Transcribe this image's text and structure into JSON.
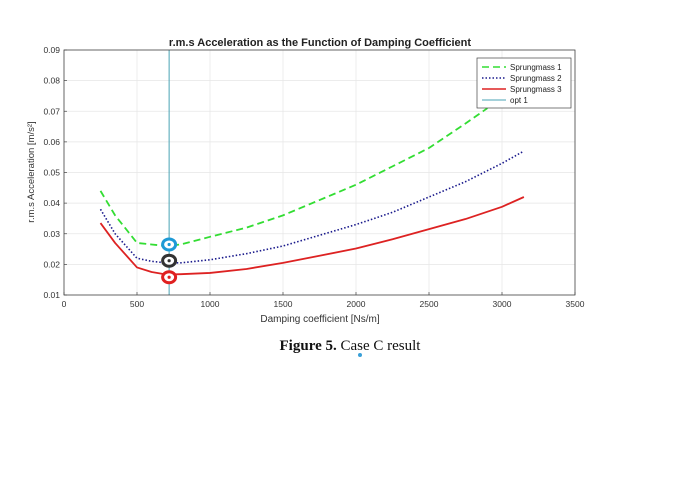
{
  "chart_data": {
    "type": "line",
    "title": "r.m.s Acceleration as the Function of Damping Coefficient",
    "xlabel": "Damping coefficient [Ns/m]",
    "ylabel": "r.m.s Acceleration [m/s²]",
    "xlim": [
      0,
      3500
    ],
    "ylim": [
      0.01,
      0.09
    ],
    "xticks": [
      "0",
      "500",
      "1000",
      "1500",
      "2000",
      "2500",
      "3000",
      "3500"
    ],
    "yticks": [
      "0.01",
      "0.02",
      "0.03",
      "0.04",
      "0.05",
      "0.06",
      "0.07",
      "0.08",
      "0.09"
    ],
    "grid": true,
    "legend_position": "top-right",
    "series": [
      {
        "name": "Sprungmass 1",
        "color": "#33dd33",
        "style": "dashed",
        "x": [
          250,
          350,
          500,
          600,
          700,
          800,
          1000,
          1250,
          1500,
          1750,
          2000,
          2250,
          2500,
          2750,
          2900
        ],
        "y": [
          0.044,
          0.036,
          0.027,
          0.0265,
          0.026,
          0.0265,
          0.029,
          0.032,
          0.036,
          0.041,
          0.046,
          0.052,
          0.058,
          0.066,
          0.071
        ]
      },
      {
        "name": "Sprungmass 2",
        "color": "#1a1a8c",
        "style": "dotted",
        "x": [
          250,
          350,
          500,
          600,
          700,
          800,
          1000,
          1250,
          1500,
          1750,
          2000,
          2250,
          2500,
          2750,
          3000,
          3150
        ],
        "y": [
          0.038,
          0.03,
          0.022,
          0.021,
          0.0205,
          0.0205,
          0.0215,
          0.0235,
          0.026,
          0.0295,
          0.033,
          0.037,
          0.042,
          0.047,
          0.053,
          0.057
        ]
      },
      {
        "name": "Sprungmass 3",
        "color": "#dd2222",
        "style": "solid",
        "x": [
          250,
          350,
          500,
          600,
          700,
          800,
          1000,
          1250,
          1500,
          1750,
          2000,
          2250,
          2500,
          2750,
          3000,
          3150
        ],
        "y": [
          0.0335,
          0.027,
          0.019,
          0.0175,
          0.0167,
          0.0168,
          0.0172,
          0.0185,
          0.0205,
          0.0228,
          0.0252,
          0.0282,
          0.0315,
          0.0348,
          0.0388,
          0.042
        ]
      },
      {
        "name": "opt 1",
        "color": "#4aa3b5",
        "style": "solid",
        "x": [
          720,
          720
        ],
        "y": [
          0.01,
          0.09
        ]
      }
    ],
    "markers": [
      {
        "x": 720,
        "y": 0.0265,
        "color": "#1e9ad6"
      },
      {
        "x": 720,
        "y": 0.0212,
        "color": "#333333"
      },
      {
        "x": 720,
        "y": 0.0158,
        "color": "#e02020"
      }
    ]
  },
  "caption": {
    "label": "Figure 5.",
    "text": " Case C result"
  }
}
